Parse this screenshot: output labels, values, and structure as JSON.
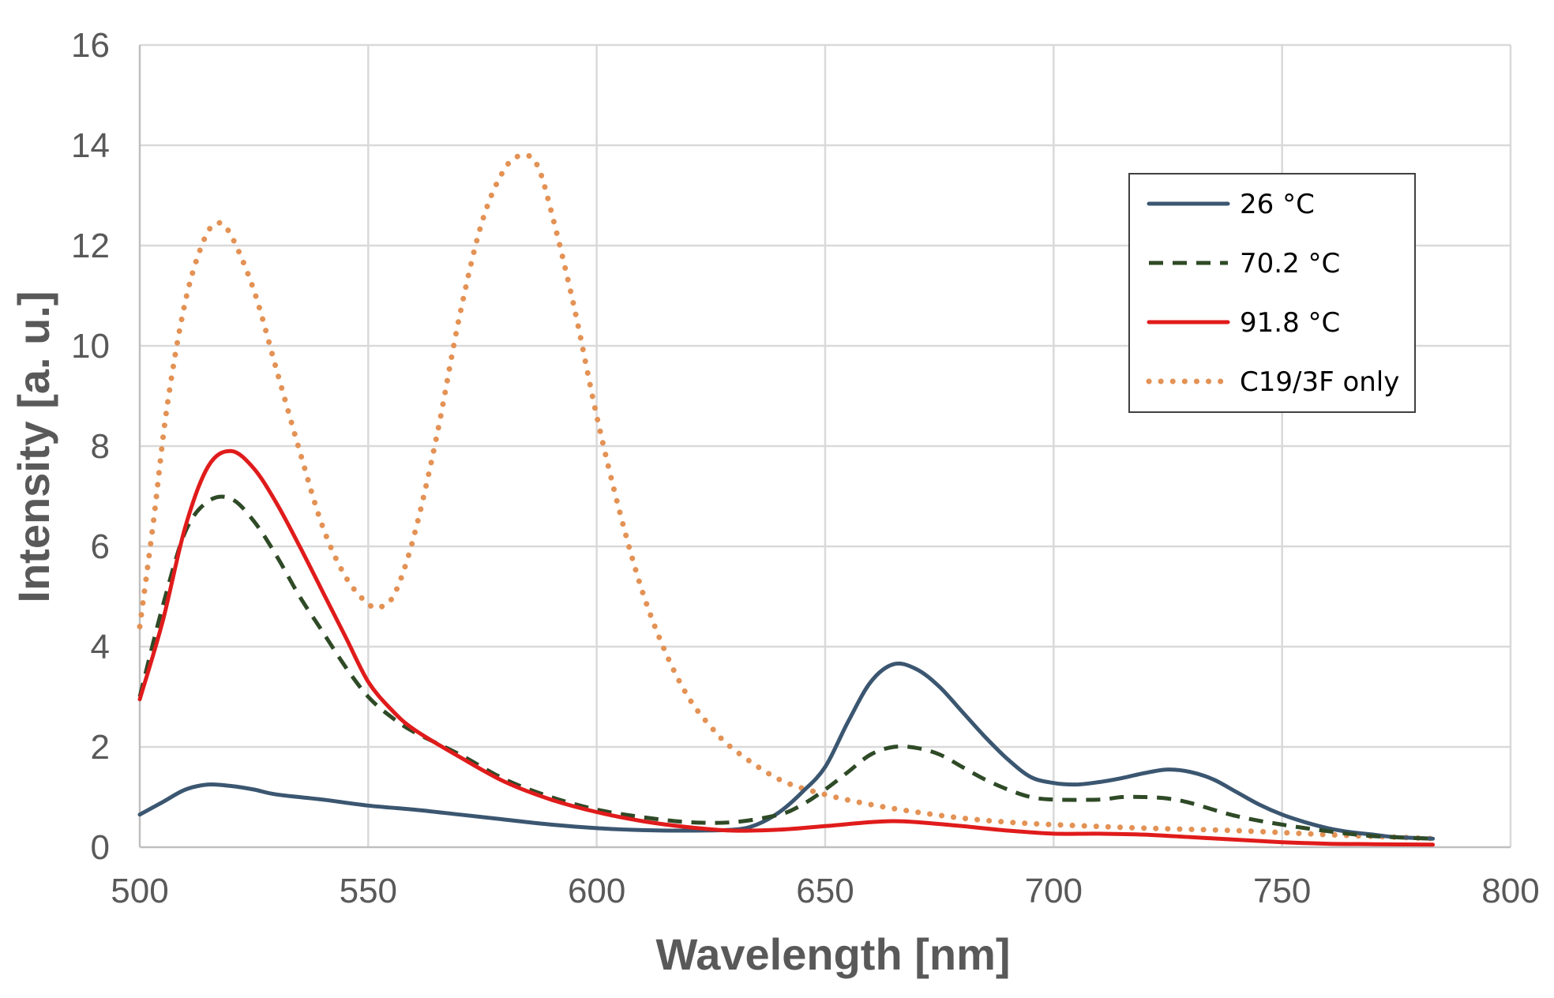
{
  "chart_data": {
    "type": "line",
    "title": "",
    "xlabel": "Wavelength [nm]",
    "ylabel": "Intensity [a. u.]",
    "xlim": [
      500,
      800
    ],
    "ylim": [
      0,
      16
    ],
    "xticks": [
      500,
      550,
      600,
      650,
      700,
      750,
      800
    ],
    "yticks": [
      0,
      2,
      4,
      6,
      8,
      10,
      12,
      14,
      16
    ],
    "grid": true,
    "legend_position": "top-right",
    "series": [
      {
        "name": "26 °C",
        "color": "#3b5670",
        "style": "solid",
        "points": [
          [
            500,
            0.65
          ],
          [
            505,
            0.9
          ],
          [
            510,
            1.15
          ],
          [
            515,
            1.25
          ],
          [
            520,
            1.22
          ],
          [
            525,
            1.15
          ],
          [
            530,
            1.05
          ],
          [
            540,
            0.95
          ],
          [
            550,
            0.83
          ],
          [
            560,
            0.75
          ],
          [
            570,
            0.65
          ],
          [
            580,
            0.55
          ],
          [
            590,
            0.45
          ],
          [
            600,
            0.38
          ],
          [
            610,
            0.34
          ],
          [
            620,
            0.33
          ],
          [
            630,
            0.35
          ],
          [
            635,
            0.45
          ],
          [
            640,
            0.7
          ],
          [
            645,
            1.1
          ],
          [
            650,
            1.6
          ],
          [
            655,
            2.5
          ],
          [
            660,
            3.3
          ],
          [
            665,
            3.65
          ],
          [
            670,
            3.55
          ],
          [
            675,
            3.2
          ],
          [
            680,
            2.7
          ],
          [
            685,
            2.2
          ],
          [
            690,
            1.75
          ],
          [
            695,
            1.4
          ],
          [
            700,
            1.28
          ],
          [
            705,
            1.25
          ],
          [
            710,
            1.3
          ],
          [
            715,
            1.38
          ],
          [
            720,
            1.48
          ],
          [
            725,
            1.55
          ],
          [
            730,
            1.5
          ],
          [
            735,
            1.35
          ],
          [
            740,
            1.1
          ],
          [
            745,
            0.85
          ],
          [
            750,
            0.65
          ],
          [
            755,
            0.5
          ],
          [
            760,
            0.38
          ],
          [
            765,
            0.3
          ],
          [
            770,
            0.25
          ],
          [
            775,
            0.2
          ],
          [
            783,
            0.17
          ]
        ]
      },
      {
        "name": "70.2 °C",
        "color": "#2e4a26",
        "style": "dashed",
        "points": [
          [
            500,
            3.0
          ],
          [
            505,
            4.8
          ],
          [
            510,
            6.3
          ],
          [
            515,
            6.9
          ],
          [
            520,
            6.95
          ],
          [
            525,
            6.5
          ],
          [
            530,
            5.8
          ],
          [
            535,
            5.0
          ],
          [
            540,
            4.3
          ],
          [
            545,
            3.6
          ],
          [
            550,
            3.0
          ],
          [
            555,
            2.6
          ],
          [
            560,
            2.3
          ],
          [
            570,
            1.85
          ],
          [
            580,
            1.35
          ],
          [
            590,
            1.0
          ],
          [
            600,
            0.75
          ],
          [
            610,
            0.6
          ],
          [
            620,
            0.5
          ],
          [
            630,
            0.5
          ],
          [
            640,
            0.65
          ],
          [
            645,
            0.85
          ],
          [
            650,
            1.15
          ],
          [
            655,
            1.5
          ],
          [
            660,
            1.85
          ],
          [
            665,
            2.0
          ],
          [
            670,
            1.98
          ],
          [
            675,
            1.85
          ],
          [
            680,
            1.6
          ],
          [
            685,
            1.35
          ],
          [
            690,
            1.15
          ],
          [
            695,
            1.0
          ],
          [
            700,
            0.95
          ],
          [
            710,
            0.95
          ],
          [
            715,
            1.0
          ],
          [
            720,
            1.0
          ],
          [
            725,
            0.97
          ],
          [
            730,
            0.88
          ],
          [
            740,
            0.62
          ],
          [
            750,
            0.45
          ],
          [
            760,
            0.32
          ],
          [
            770,
            0.22
          ],
          [
            783,
            0.17
          ]
        ]
      },
      {
        "name": "91.8 °C",
        "color": "#e01b1b",
        "style": "solid",
        "points": [
          [
            500,
            2.95
          ],
          [
            505,
            4.5
          ],
          [
            510,
            6.4
          ],
          [
            515,
            7.6
          ],
          [
            520,
            7.9
          ],
          [
            525,
            7.55
          ],
          [
            530,
            6.85
          ],
          [
            535,
            6.0
          ],
          [
            540,
            5.1
          ],
          [
            545,
            4.2
          ],
          [
            550,
            3.3
          ],
          [
            555,
            2.75
          ],
          [
            560,
            2.35
          ],
          [
            570,
            1.8
          ],
          [
            580,
            1.3
          ],
          [
            590,
            0.95
          ],
          [
            600,
            0.7
          ],
          [
            610,
            0.52
          ],
          [
            620,
            0.4
          ],
          [
            630,
            0.33
          ],
          [
            640,
            0.35
          ],
          [
            650,
            0.42
          ],
          [
            660,
            0.5
          ],
          [
            665,
            0.52
          ],
          [
            670,
            0.5
          ],
          [
            680,
            0.42
          ],
          [
            690,
            0.33
          ],
          [
            700,
            0.27
          ],
          [
            710,
            0.27
          ],
          [
            720,
            0.25
          ],
          [
            730,
            0.2
          ],
          [
            740,
            0.15
          ],
          [
            750,
            0.1
          ],
          [
            760,
            0.07
          ],
          [
            770,
            0.06
          ],
          [
            783,
            0.05
          ]
        ]
      },
      {
        "name": "C19/3F only",
        "color": "#e39255",
        "style": "dotted",
        "points": [
          [
            500,
            4.4
          ],
          [
            503,
            6.5
          ],
          [
            506,
            8.8
          ],
          [
            510,
            10.9
          ],
          [
            514,
            12.1
          ],
          [
            517,
            12.45
          ],
          [
            520,
            12.2
          ],
          [
            525,
            11.1
          ],
          [
            530,
            9.5
          ],
          [
            535,
            7.9
          ],
          [
            540,
            6.4
          ],
          [
            545,
            5.4
          ],
          [
            550,
            4.85
          ],
          [
            553,
            4.8
          ],
          [
            556,
            5.1
          ],
          [
            560,
            6.2
          ],
          [
            565,
            8.2
          ],
          [
            570,
            10.6
          ],
          [
            575,
            12.5
          ],
          [
            580,
            13.55
          ],
          [
            584,
            13.8
          ],
          [
            587,
            13.6
          ],
          [
            590,
            12.7
          ],
          [
            595,
            10.8
          ],
          [
            600,
            8.6
          ],
          [
            605,
            6.7
          ],
          [
            610,
            5.1
          ],
          [
            615,
            3.9
          ],
          [
            620,
            3.0
          ],
          [
            625,
            2.4
          ],
          [
            630,
            1.95
          ],
          [
            640,
            1.35
          ],
          [
            650,
            1.05
          ],
          [
            660,
            0.85
          ],
          [
            670,
            0.7
          ],
          [
            680,
            0.58
          ],
          [
            690,
            0.5
          ],
          [
            700,
            0.45
          ],
          [
            720,
            0.38
          ],
          [
            740,
            0.33
          ],
          [
            760,
            0.25
          ],
          [
            775,
            0.2
          ],
          [
            783,
            0.17
          ]
        ]
      }
    ]
  }
}
